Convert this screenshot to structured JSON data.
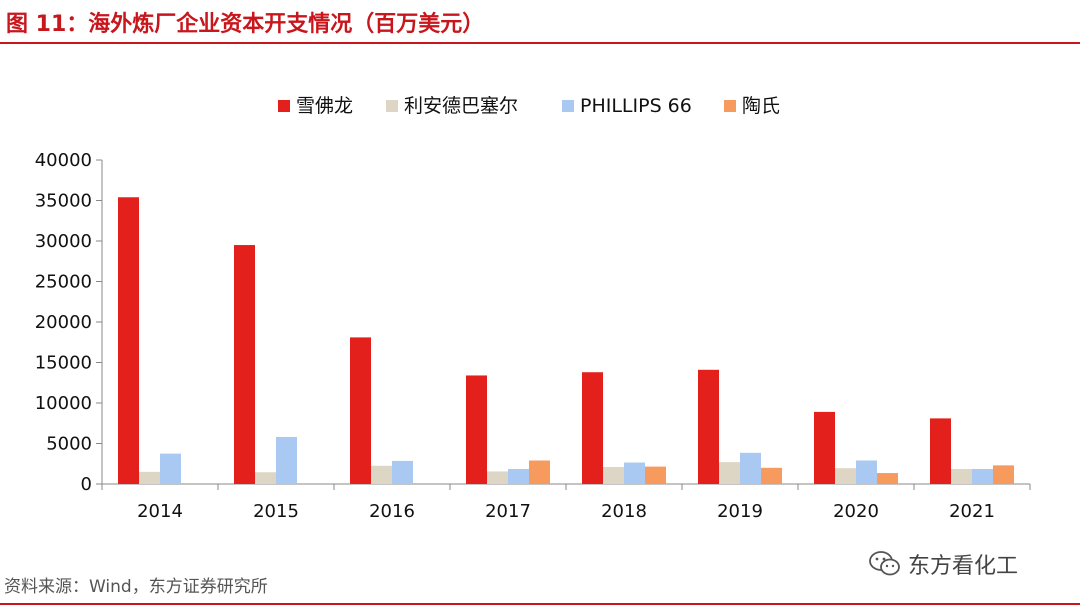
{
  "figure_title": "图 11：海外炼厂企业资本开支情况（百万美元）",
  "source_note": "资料来源：Wind，东方证券研究所",
  "watermark": {
    "text": "东方看化工",
    "icon": "wechat-icon"
  },
  "chart_data": {
    "type": "bar",
    "title": "",
    "xlabel": "",
    "ylabel": "",
    "categories": [
      "2014",
      "2015",
      "2016",
      "2017",
      "2018",
      "2019",
      "2020",
      "2021"
    ],
    "ylim": [
      0,
      40000
    ],
    "yticks": [
      "0",
      "5000",
      "10000",
      "15000",
      "20000",
      "25000",
      "30000",
      "35000",
      "40000"
    ],
    "yticks_values": [
      0,
      5000,
      10000,
      15000,
      20000,
      25000,
      30000,
      35000,
      40000
    ],
    "grid": false,
    "legend_position": "top-center",
    "series": [
      {
        "name": "雪佛龙",
        "color": "#e3201b",
        "values": [
          35400,
          29500,
          18100,
          13400,
          13800,
          14100,
          8900,
          8100
        ]
      },
      {
        "name": "利安德巴塞尔",
        "color": "#ddd6c4",
        "values": [
          1500,
          1450,
          2250,
          1550,
          2100,
          2700,
          1950,
          1850
        ]
      },
      {
        "name": "PHILLIPS 66",
        "color": "#a9c8f2",
        "values": [
          3750,
          5800,
          2850,
          1850,
          2650,
          3850,
          2900,
          1850
        ]
      },
      {
        "name": "陶氏",
        "color": "#f79a5d",
        "values": [
          0,
          0,
          0,
          2900,
          2150,
          2000,
          1350,
          2300
        ]
      }
    ]
  }
}
